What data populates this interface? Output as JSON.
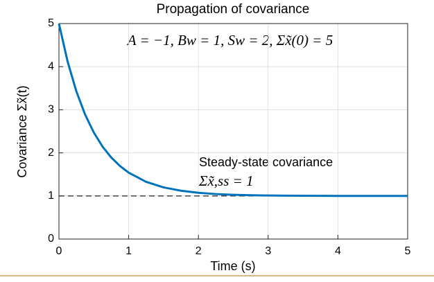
{
  "chart_data": {
    "type": "line",
    "title": "Propagation of covariance",
    "annotation": "A = −1, Bw = 1, Sw = 2, Σx̃(0) = 5",
    "reference_label": "Steady-state covariance",
    "reference_math": "Σx̃,ss = 1",
    "reference_line": 1,
    "x_label": "Time (s)",
    "y_label": "Covariance Σx̃(t)",
    "x": [
      0,
      0.125,
      0.25,
      0.375,
      0.5,
      0.625,
      0.75,
      0.875,
      1,
      1.25,
      1.5,
      1.75,
      2,
      2.25,
      2.5,
      2.75,
      3,
      3.25,
      3.5,
      3.75,
      4,
      4.25,
      4.5,
      4.75,
      5
    ],
    "series": [
      {
        "name": "Covariance",
        "color": "#0072bd",
        "values": [
          5,
          4.115,
          3.426,
          2.89,
          2.472,
          2.146,
          1.892,
          1.695,
          1.541,
          1.328,
          1.199,
          1.121,
          1.073,
          1.044,
          1.027,
          1.016,
          1.01,
          1.006,
          1.004,
          1.002,
          1.001,
          1.001,
          1.0,
          1.0,
          1.0
        ]
      }
    ],
    "xlim": [
      0,
      5
    ],
    "ylim": [
      0,
      5
    ],
    "xticks": [
      0,
      1,
      2,
      3,
      4,
      5
    ],
    "yticks": [
      0,
      1,
      2,
      3,
      4,
      5
    ],
    "grid": true
  }
}
